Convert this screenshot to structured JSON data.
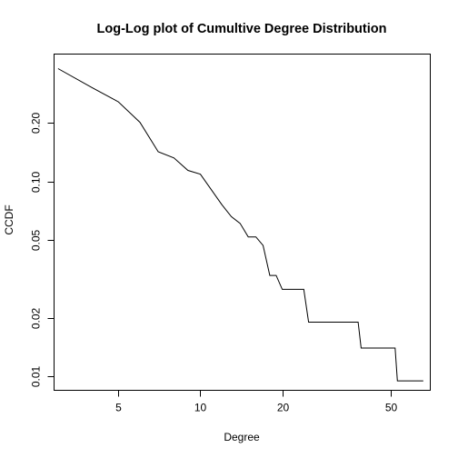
{
  "chart_data": {
    "type": "line",
    "title": "Log-Log plot of Cumultive Degree Distribution",
    "xlabel": "Degree",
    "ylabel": "CCDF",
    "x_scale": "log",
    "y_scale": "log",
    "xlim": [
      2.9,
      70
    ],
    "ylim": [
      0.0085,
      0.45
    ],
    "x_ticks": [
      {
        "value": 5,
        "label": "5"
      },
      {
        "value": 10,
        "label": "10"
      },
      {
        "value": 20,
        "label": "20"
      },
      {
        "value": 50,
        "label": "50"
      }
    ],
    "y_ticks": [
      {
        "value": 0.01,
        "label": "0.01"
      },
      {
        "value": 0.02,
        "label": "0.02"
      },
      {
        "value": 0.05,
        "label": "0.05"
      },
      {
        "value": 0.1,
        "label": "0.10"
      },
      {
        "value": 0.2,
        "label": "0.20"
      }
    ],
    "grid": false,
    "series": [
      {
        "color": "#000000",
        "points": [
          [
            3.0,
            0.379
          ],
          [
            4.0,
            0.303
          ],
          [
            5.0,
            0.256
          ],
          [
            6.0,
            0.201
          ],
          [
            7.0,
            0.142
          ],
          [
            8.0,
            0.132
          ],
          [
            9.0,
            0.114
          ],
          [
            10.0,
            0.109
          ],
          [
            12.0,
            0.076
          ],
          [
            13.0,
            0.066
          ],
          [
            14.0,
            0.061
          ],
          [
            15.0,
            0.052
          ],
          [
            16.0,
            0.052
          ],
          [
            17.0,
            0.047
          ],
          [
            18.0,
            0.033
          ],
          [
            19.0,
            0.033
          ],
          [
            20.0,
            0.028
          ],
          [
            24.0,
            0.028
          ],
          [
            25.0,
            0.019
          ],
          [
            38.0,
            0.019
          ],
          [
            39.0,
            0.014
          ],
          [
            52.0,
            0.014
          ],
          [
            53.0,
            0.0095
          ],
          [
            66.0,
            0.0095
          ]
        ]
      }
    ]
  }
}
